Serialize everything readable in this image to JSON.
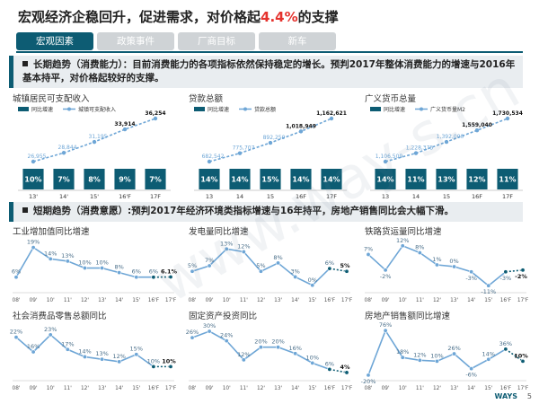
{
  "title": {
    "prefix": "宏观经济企稳回升，促进需求，对价格起",
    "highlight": "4.4%",
    "suffix": "的支撑"
  },
  "nav": {
    "tabs": [
      "宏观因素",
      "政策事件",
      "厂商目标",
      "新车"
    ],
    "active": 0
  },
  "banner1": {
    "text": "长期趋势（消费能力）：目前消费能力的各项指标依然保持稳定的增长。预判2017年整体消费能力的增速与2016年基本持平，对价格起较好的支撑。"
  },
  "banner2": {
    "text": "短期趋势（消费意愿）:预判2017年经济环境类指标增速与16年持平，房地产销售同比会大幅下滑。"
  },
  "colors": {
    "bar": "#0d5c73",
    "line": "#6ea6d6",
    "dark_line": "#0d5c73"
  },
  "watermark": "www.way-s.cn",
  "logo": "WAYS",
  "page_number": "5",
  "chart_data": [
    {
      "type": "bar",
      "title": "城镇居民可支配收入",
      "categories": [
        "13'",
        "14'",
        "15'",
        "16'F",
        "17F"
      ],
      "legend": [
        "同比增速",
        "城镇可支配收入"
      ],
      "series": [
        {
          "name": "同比增速",
          "values": [
            10,
            7,
            8,
            9,
            7
          ],
          "labels": [
            "10%",
            "7%",
            "8%",
            "9%",
            "7%"
          ]
        },
        {
          "name": "城镇可支配收入",
          "values": [
            26955,
            28844,
            31195,
            33914,
            36254
          ],
          "labels": [
            "26,955",
            "28,844",
            "31,195",
            "33,914",
            "36,254"
          ]
        }
      ]
    },
    {
      "type": "bar",
      "title": "贷款总额",
      "categories": [
        "13",
        "14",
        "15",
        "16F",
        "17F"
      ],
      "legend": [
        "同比增速",
        "贷款总额"
      ],
      "series": [
        {
          "name": "同比增速",
          "values": [
            14,
            14,
            15,
            14,
            14
          ],
          "labels": [
            "14%",
            "14%",
            "15%",
            "14%",
            "14%"
          ]
        },
        {
          "name": "贷款总额",
          "values": [
            682542,
            775707,
            892250,
            1018949,
            1162621
          ],
          "labels": [
            "682,542",
            "775,707",
            "892,250",
            "1,018,949",
            "1,162,621"
          ]
        }
      ]
    },
    {
      "type": "bar",
      "title": "广义货币总量",
      "categories": [
        "13",
        "14",
        "15",
        "16F",
        "17F"
      ],
      "legend": [
        "同比增速",
        "广义货币量M2"
      ],
      "series": [
        {
          "name": "同比增速",
          "values": [
            14,
            11,
            13,
            12,
            11
          ],
          "labels": [
            "14%",
            "11%",
            "13%",
            "12%",
            "11%"
          ]
        },
        {
          "name": "广义货币量M2",
          "values": [
            1106509,
            1228375,
            1392000,
            1559040,
            1730534
          ],
          "labels": [
            "1,106,509",
            "1,228,375",
            "1,392,000",
            "1,559,040",
            "1,730,534"
          ]
        }
      ]
    },
    {
      "type": "line",
      "title": "工业增加值同比增速",
      "categories": [
        "08'",
        "09'",
        "10'",
        "11'",
        "12'",
        "13'",
        "14'",
        "15'",
        "16'F",
        "17'F"
      ],
      "values": [
        6,
        19,
        14,
        13,
        10,
        10,
        8,
        6,
        6,
        6.1
      ],
      "labels": [
        "6%",
        "19%",
        "14%",
        "13%",
        "10%",
        "10%",
        "8%",
        "6%",
        "6%",
        "6.1%"
      ],
      "ylim": [
        0,
        22
      ]
    },
    {
      "type": "line",
      "title": "发电量同比增速",
      "categories": [
        "08'",
        "09'",
        "10'",
        "11'",
        "12'",
        "13'",
        "14'",
        "15'",
        "16'F",
        "17'F"
      ],
      "values": [
        5,
        7,
        13,
        12,
        5,
        8,
        3,
        0,
        6,
        5
      ],
      "labels": [
        "5%",
        "7%",
        "13%",
        "12%",
        "5%",
        "8%",
        "3%",
        "0%",
        "6%",
        "5%"
      ],
      "ylim": [
        -2,
        16
      ]
    },
    {
      "type": "line",
      "title": "铁路货运量同比增速",
      "categories": [
        "08'",
        "09'",
        "10'",
        "11'",
        "12'",
        "13'",
        "14'",
        "15'",
        "16'F",
        "17'F"
      ],
      "values": [
        7,
        -2,
        12,
        8,
        1,
        0,
        -3,
        -11,
        -3,
        -2
      ],
      "labels": [
        "7%",
        "-2%",
        "12%",
        "8%",
        "1%",
        "0%",
        "-3%",
        "-11%",
        "-3%",
        "-2%"
      ],
      "ylim": [
        -14,
        15
      ]
    },
    {
      "type": "line",
      "title": "社会消费品零售总额同比",
      "categories": [
        "08'",
        "09'",
        "10'",
        "11'",
        "12'",
        "13'",
        "14'",
        "15'",
        "16'F",
        "17'F"
      ],
      "values": [
        22,
        16,
        23,
        17,
        14,
        13,
        12,
        15,
        10,
        10
      ],
      "labels": [
        "22%",
        "16%",
        "23%",
        "17%",
        "14%",
        "13%",
        "12%",
        "15%",
        "10%",
        "10%"
      ],
      "ylim": [
        5,
        27
      ]
    },
    {
      "type": "line",
      "title": "固定资产投资同比",
      "categories": [
        "08'",
        "09'",
        "10'",
        "11'",
        "12'",
        "13'",
        "14'",
        "15'",
        "16'F",
        "17'F"
      ],
      "values": [
        26,
        30,
        24,
        12,
        20,
        20,
        16,
        10,
        6,
        4
      ],
      "labels": [
        "26%",
        "30%",
        "24%",
        "12%",
        "20%",
        "20%",
        "16%",
        "10%",
        "6%",
        "4%"
      ],
      "ylim": [
        0,
        34
      ]
    },
    {
      "type": "line",
      "title": "房地产销售额同比增速",
      "categories": [
        "08'",
        "09'",
        "10'",
        "11'",
        "12'",
        "13'",
        "14'",
        "15'",
        "16'F",
        "17'F"
      ],
      "values": [
        -20,
        76,
        18,
        12,
        10,
        26,
        -6,
        14,
        36,
        10
      ],
      "labels": [
        "-20%",
        "76%",
        "18%",
        "12%",
        "10%",
        "26%",
        "-6%",
        "14%",
        "36%",
        "10%"
      ],
      "ylim": [
        -28,
        88
      ]
    }
  ]
}
